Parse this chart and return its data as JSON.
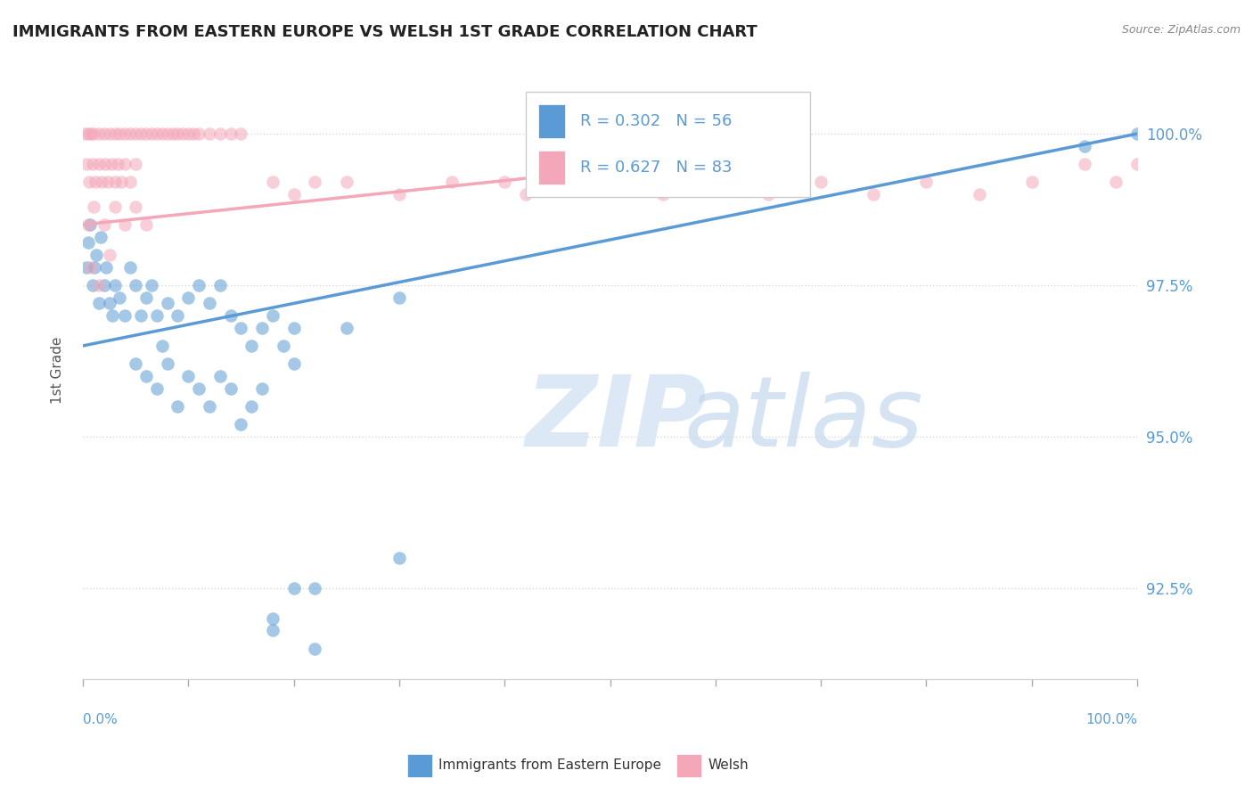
{
  "title": "IMMIGRANTS FROM EASTERN EUROPE VS WELSH 1ST GRADE CORRELATION CHART",
  "source": "Source: ZipAtlas.com",
  "ylabel": "1st Grade",
  "xlim": [
    0.0,
    100.0
  ],
  "ylim": [
    91.0,
    101.2
  ],
  "blue_color": "#5b9bd5",
  "pink_color": "#f4a7b9",
  "blue_scatter": [
    [
      0.3,
      97.8
    ],
    [
      0.5,
      98.2
    ],
    [
      0.7,
      98.5
    ],
    [
      0.9,
      97.5
    ],
    [
      1.1,
      97.8
    ],
    [
      1.3,
      98.0
    ],
    [
      1.5,
      97.2
    ],
    [
      1.7,
      98.3
    ],
    [
      2.0,
      97.5
    ],
    [
      2.2,
      97.8
    ],
    [
      2.5,
      97.2
    ],
    [
      2.8,
      97.0
    ],
    [
      3.0,
      97.5
    ],
    [
      3.5,
      97.3
    ],
    [
      4.0,
      97.0
    ],
    [
      4.5,
      97.8
    ],
    [
      5.0,
      97.5
    ],
    [
      5.5,
      97.0
    ],
    [
      6.0,
      97.3
    ],
    [
      6.5,
      97.5
    ],
    [
      7.0,
      97.0
    ],
    [
      7.5,
      96.5
    ],
    [
      8.0,
      97.2
    ],
    [
      9.0,
      97.0
    ],
    [
      10.0,
      97.3
    ],
    [
      11.0,
      97.5
    ],
    [
      12.0,
      97.2
    ],
    [
      13.0,
      97.5
    ],
    [
      14.0,
      97.0
    ],
    [
      15.0,
      96.8
    ],
    [
      16.0,
      96.5
    ],
    [
      17.0,
      96.8
    ],
    [
      18.0,
      97.0
    ],
    [
      19.0,
      96.5
    ],
    [
      20.0,
      96.8
    ],
    [
      5.0,
      96.2
    ],
    [
      6.0,
      96.0
    ],
    [
      7.0,
      95.8
    ],
    [
      8.0,
      96.2
    ],
    [
      9.0,
      95.5
    ],
    [
      10.0,
      96.0
    ],
    [
      11.0,
      95.8
    ],
    [
      12.0,
      95.5
    ],
    [
      13.0,
      96.0
    ],
    [
      14.0,
      95.8
    ],
    [
      15.0,
      95.2
    ],
    [
      16.0,
      95.5
    ],
    [
      17.0,
      95.8
    ],
    [
      20.0,
      96.2
    ],
    [
      25.0,
      96.8
    ],
    [
      30.0,
      97.3
    ],
    [
      20.0,
      92.5
    ],
    [
      30.0,
      93.0
    ],
    [
      18.0,
      91.8
    ],
    [
      22.0,
      91.5
    ],
    [
      18.0,
      92.0
    ],
    [
      22.0,
      92.5
    ],
    [
      95.0,
      99.8
    ],
    [
      100.0,
      100.0
    ]
  ],
  "pink_scatter": [
    [
      0.2,
      100.0
    ],
    [
      0.5,
      100.0
    ],
    [
      0.8,
      100.0
    ],
    [
      1.0,
      100.0
    ],
    [
      1.5,
      100.0
    ],
    [
      2.0,
      100.0
    ],
    [
      2.5,
      100.0
    ],
    [
      3.0,
      100.0
    ],
    [
      3.5,
      100.0
    ],
    [
      4.0,
      100.0
    ],
    [
      4.5,
      100.0
    ],
    [
      5.0,
      100.0
    ],
    [
      5.5,
      100.0
    ],
    [
      6.0,
      100.0
    ],
    [
      6.5,
      100.0
    ],
    [
      7.0,
      100.0
    ],
    [
      7.5,
      100.0
    ],
    [
      8.0,
      100.0
    ],
    [
      8.5,
      100.0
    ],
    [
      9.0,
      100.0
    ],
    [
      9.5,
      100.0
    ],
    [
      10.0,
      100.0
    ],
    [
      10.5,
      100.0
    ],
    [
      11.0,
      100.0
    ],
    [
      12.0,
      100.0
    ],
    [
      13.0,
      100.0
    ],
    [
      14.0,
      100.0
    ],
    [
      15.0,
      100.0
    ],
    [
      0.3,
      99.5
    ],
    [
      0.6,
      99.2
    ],
    [
      0.9,
      99.5
    ],
    [
      1.2,
      99.2
    ],
    [
      1.5,
      99.5
    ],
    [
      1.8,
      99.2
    ],
    [
      2.1,
      99.5
    ],
    [
      2.4,
      99.2
    ],
    [
      2.7,
      99.5
    ],
    [
      3.0,
      99.2
    ],
    [
      3.3,
      99.5
    ],
    [
      3.6,
      99.2
    ],
    [
      4.0,
      99.5
    ],
    [
      4.5,
      99.2
    ],
    [
      5.0,
      99.5
    ],
    [
      0.5,
      98.5
    ],
    [
      1.0,
      98.8
    ],
    [
      2.0,
      98.5
    ],
    [
      3.0,
      98.8
    ],
    [
      4.0,
      98.5
    ],
    [
      5.0,
      98.8
    ],
    [
      6.0,
      98.5
    ],
    [
      0.8,
      97.8
    ],
    [
      1.5,
      97.5
    ],
    [
      2.5,
      98.0
    ],
    [
      18.0,
      99.2
    ],
    [
      20.0,
      99.0
    ],
    [
      22.0,
      99.2
    ],
    [
      25.0,
      99.2
    ],
    [
      30.0,
      99.0
    ],
    [
      35.0,
      99.2
    ],
    [
      40.0,
      99.2
    ],
    [
      42.0,
      99.0
    ],
    [
      45.0,
      99.2
    ],
    [
      50.0,
      99.2
    ],
    [
      55.0,
      99.0
    ],
    [
      60.0,
      99.2
    ],
    [
      65.0,
      99.0
    ],
    [
      70.0,
      99.2
    ],
    [
      75.0,
      99.0
    ],
    [
      80.0,
      99.2
    ],
    [
      85.0,
      99.0
    ],
    [
      90.0,
      99.2
    ],
    [
      95.0,
      99.5
    ],
    [
      98.0,
      99.2
    ],
    [
      100.0,
      99.5
    ]
  ],
  "blue_line_x": [
    0.0,
    100.0
  ],
  "blue_line_y": [
    96.5,
    100.0
  ],
  "pink_line_x": [
    0.0,
    55.0
  ],
  "pink_line_y": [
    98.5,
    99.5
  ],
  "legend_blue_r": "R = 0.302",
  "legend_blue_n": "N = 56",
  "legend_pink_r": "R = 0.627",
  "legend_pink_n": "N = 83",
  "legend_label_blue": "Immigrants from Eastern Europe",
  "legend_label_pink": "Welsh",
  "watermark_zip_color": "#dce8f5",
  "watermark_atlas_color": "#c5d8ee",
  "grid_color": "#d8d8d8",
  "axis_label_color": "#5b9bd5",
  "yticks": [
    92.5,
    95.0,
    97.5,
    100.0
  ],
  "ytick_labels": [
    "92.5%",
    "95.0%",
    "97.5%",
    "100.0%"
  ]
}
